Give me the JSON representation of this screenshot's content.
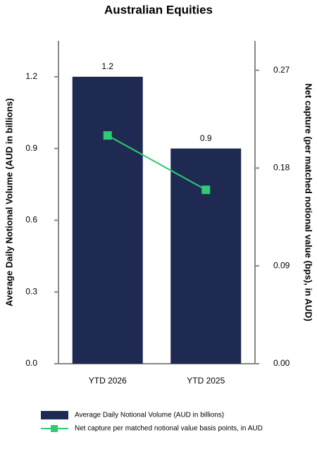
{
  "chart_data": {
    "type": "bar+line",
    "title": "Australian Equities",
    "categories": [
      "YTD 2026",
      "YTD 2025"
    ],
    "y_label": "Average Daily Notional Volume (AUD in billions)",
    "y2_label": "Net capture (per matched notional value (bps), in AUD)",
    "series": [
      {
        "name": "Average Daily Notional Volume (AUD in billions)",
        "type": "bar",
        "color": "#1f2a52",
        "values": [
          1.2,
          0.9
        ]
      },
      {
        "name": "Net capture per matched notional value basis points, in AUD",
        "type": "line",
        "axis": "y2",
        "color": "#2ecc71",
        "values": [
          0.21,
          0.16
        ]
      }
    ],
    "ylim": [
      0,
      1.35
    ],
    "yticks": [
      {
        "value": 0,
        "label": "0.0"
      },
      0.3,
      0.6,
      0.9,
      1.2
    ],
    "y2lim": [
      0,
      0.297
    ],
    "y2ticks": [
      {
        "value": 0,
        "label": "0.00"
      },
      {
        "value": 0.09,
        "label": "0.09"
      },
      {
        "value": 0.18,
        "label": "0.18"
      },
      {
        "value": 0.27,
        "label": "0.27"
      }
    ],
    "legend": "bottom"
  }
}
